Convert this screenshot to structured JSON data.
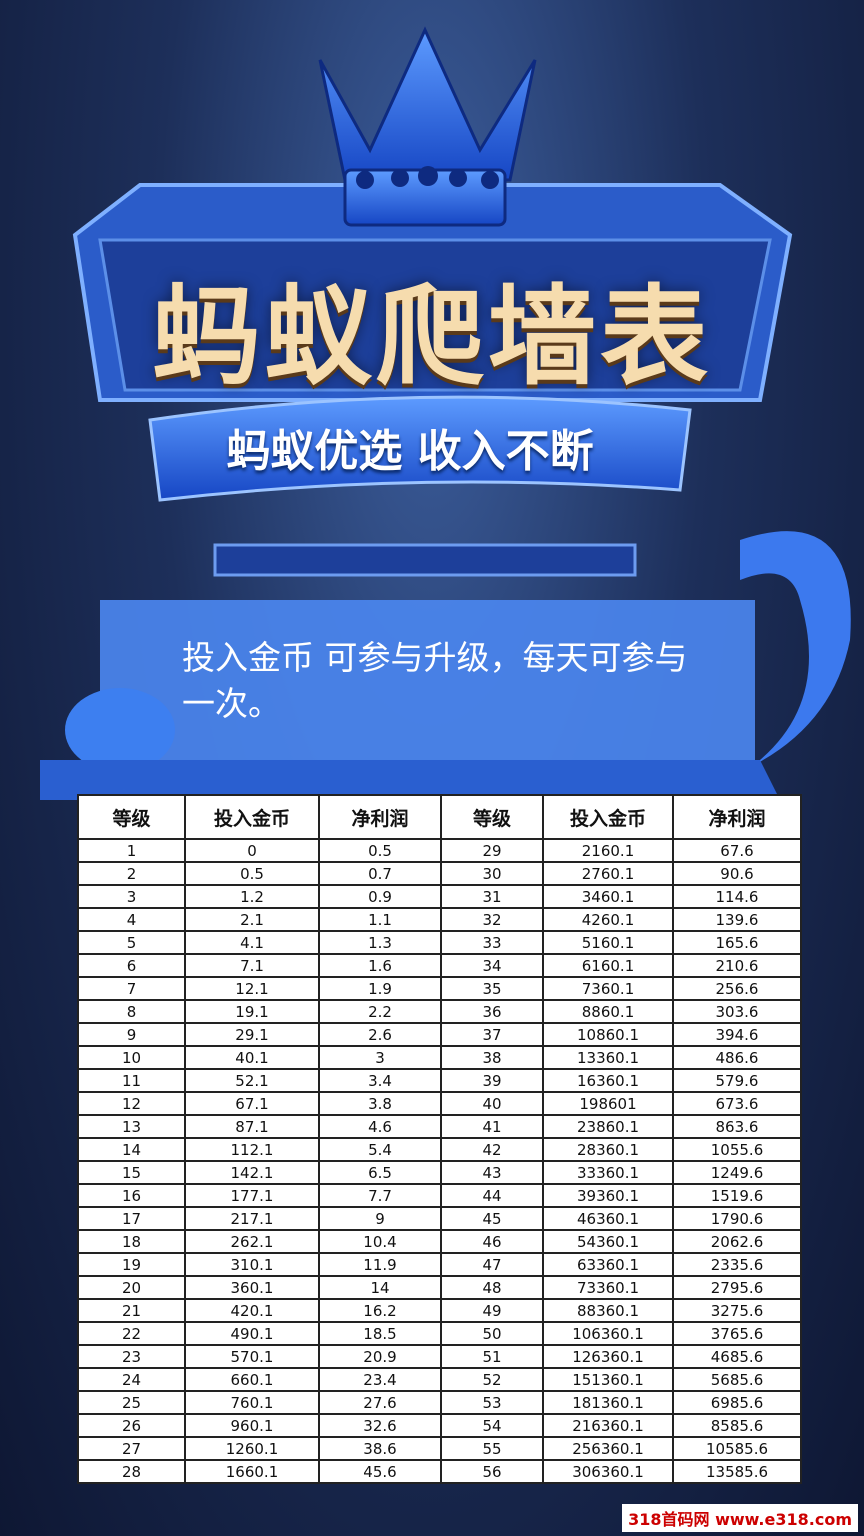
{
  "header": {
    "title": "蚂蚁爬墙表",
    "subtitle": "蚂蚁优选 收入不断"
  },
  "description": "投入金币 可参与升级，每天可参与一次。",
  "table": {
    "columns": [
      "等级",
      "投入金币",
      "净利润",
      "等级",
      "投入金币",
      "净利润"
    ],
    "rows": [
      [
        "1",
        "0",
        "0.5",
        "29",
        "2160.1",
        "67.6"
      ],
      [
        "2",
        "0.5",
        "0.7",
        "30",
        "2760.1",
        "90.6"
      ],
      [
        "3",
        "1.2",
        "0.9",
        "31",
        "3460.1",
        "114.6"
      ],
      [
        "4",
        "2.1",
        "1.1",
        "32",
        "4260.1",
        "139.6"
      ],
      [
        "5",
        "4.1",
        "1.3",
        "33",
        "5160.1",
        "165.6"
      ],
      [
        "6",
        "7.1",
        "1.6",
        "34",
        "6160.1",
        "210.6"
      ],
      [
        "7",
        "12.1",
        "1.9",
        "35",
        "7360.1",
        "256.6"
      ],
      [
        "8",
        "19.1",
        "2.2",
        "36",
        "8860.1",
        "303.6"
      ],
      [
        "9",
        "29.1",
        "2.6",
        "37",
        "10860.1",
        "394.6"
      ],
      [
        "10",
        "40.1",
        "3",
        "38",
        "13360.1",
        "486.6"
      ],
      [
        "11",
        "52.1",
        "3.4",
        "39",
        "16360.1",
        "579.6"
      ],
      [
        "12",
        "67.1",
        "3.8",
        "40",
        "198601",
        "673.6"
      ],
      [
        "13",
        "87.1",
        "4.6",
        "41",
        "23860.1",
        "863.6"
      ],
      [
        "14",
        "112.1",
        "5.4",
        "42",
        "28360.1",
        "1055.6"
      ],
      [
        "15",
        "142.1",
        "6.5",
        "43",
        "33360.1",
        "1249.6"
      ],
      [
        "16",
        "177.1",
        "7.7",
        "44",
        "39360.1",
        "1519.6"
      ],
      [
        "17",
        "217.1",
        "9",
        "45",
        "46360.1",
        "1790.6"
      ],
      [
        "18",
        "262.1",
        "10.4",
        "46",
        "54360.1",
        "2062.6"
      ],
      [
        "19",
        "310.1",
        "11.9",
        "47",
        "63360.1",
        "2335.6"
      ],
      [
        "20",
        "360.1",
        "14",
        "48",
        "73360.1",
        "2795.6"
      ],
      [
        "21",
        "420.1",
        "16.2",
        "49",
        "88360.1",
        "3275.6"
      ],
      [
        "22",
        "490.1",
        "18.5",
        "50",
        "106360.1",
        "3765.6"
      ],
      [
        "23",
        "570.1",
        "20.9",
        "51",
        "126360.1",
        "4685.6"
      ],
      [
        "24",
        "660.1",
        "23.4",
        "52",
        "151360.1",
        "5685.6"
      ],
      [
        "25",
        "760.1",
        "27.6",
        "53",
        "181360.1",
        "6985.6"
      ],
      [
        "26",
        "960.1",
        "32.6",
        "54",
        "216360.1",
        "8585.6"
      ],
      [
        "27",
        "1260.1",
        "38.6",
        "55",
        "256360.1",
        "10585.6"
      ],
      [
        "28",
        "1660.1",
        "45.6",
        "56",
        "306360.1",
        "13585.6"
      ]
    ]
  },
  "watermark": "318首码网 www.e318.com"
}
